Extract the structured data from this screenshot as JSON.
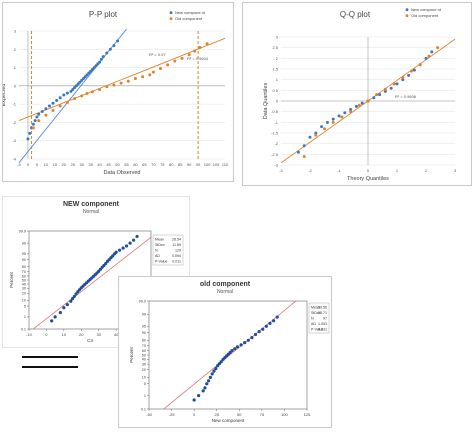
{
  "charts": [
    {
      "id": "pp",
      "type": "scatter",
      "title": "P-P plot",
      "xlabel": "Data Observed",
      "ylabel": "Expected",
      "xlim": [
        -5,
        110
      ],
      "ylim": [
        -4,
        3
      ],
      "xticks": [
        "-5",
        "0",
        "5",
        "10",
        "15",
        "20",
        "25",
        "30",
        "35",
        "40",
        "45",
        "50",
        "55",
        "60",
        "65",
        "70",
        "75",
        "80",
        "85",
        "90",
        "95",
        "100",
        "105",
        "110"
      ],
      "yticks": [
        "3",
        "2",
        "1",
        "0",
        "-1",
        "-2",
        "-3",
        "-4"
      ],
      "legend": {
        "position": "top-right",
        "items": [
          "New compone nt",
          "Old component"
        ]
      },
      "annotations": [
        "R² = 0.97",
        "R² = 0.9604"
      ],
      "vlines_x": [
        2,
        95
      ],
      "series": [
        {
          "name": "New compone nt",
          "color": "#3a78c2",
          "x": [
            0,
            1,
            2,
            3,
            4,
            5,
            6,
            8,
            10,
            12,
            14,
            16,
            18,
            20,
            22,
            24,
            25,
            26,
            27,
            28,
            29,
            30,
            31,
            32,
            33,
            34,
            35,
            36,
            37,
            38,
            39,
            40,
            41,
            42,
            44,
            46,
            48,
            50
          ],
          "y": [
            -2.9,
            -2.6,
            -2.3,
            -2.1,
            -1.9,
            -1.7,
            -1.55,
            -1.4,
            -1.25,
            -1.1,
            -0.95,
            -0.8,
            -0.65,
            -0.5,
            -0.4,
            -0.3,
            -0.2,
            -0.1,
            0.0,
            0.1,
            0.2,
            0.3,
            0.4,
            0.5,
            0.6,
            0.7,
            0.8,
            0.9,
            1.0,
            1.1,
            1.2,
            1.3,
            1.45,
            1.6,
            1.8,
            2.0,
            2.2,
            2.45
          ]
        },
        {
          "name": "Old component",
          "color": "#e0822b",
          "x": [
            3,
            6,
            10,
            14,
            18,
            22,
            26,
            30,
            33,
            36,
            40,
            44,
            48,
            52,
            56,
            60,
            64,
            68,
            70,
            74,
            78,
            82,
            86,
            90,
            93,
            96,
            100
          ],
          "y": [
            -2.3,
            -1.9,
            -1.6,
            -1.35,
            -1.1,
            -0.9,
            -0.7,
            -0.55,
            -0.42,
            -0.32,
            -0.2,
            -0.05,
            0.05,
            0.15,
            0.25,
            0.4,
            0.5,
            0.6,
            0.75,
            0.95,
            1.15,
            1.35,
            1.5,
            1.7,
            1.9,
            2.1,
            2.3
          ]
        }
      ],
      "trendlines": [
        {
          "color": "#4f8fd6",
          "x": [
            -5,
            55
          ],
          "y": [
            -4.2,
            3.1
          ]
        },
        {
          "color": "#e0822b",
          "x": [
            -5,
            110
          ],
          "y": [
            -1.9,
            2.6
          ]
        }
      ]
    },
    {
      "id": "qq",
      "type": "scatter",
      "title": "Q-Q plot",
      "xlabel": "Theory Quantiles",
      "ylabel": "Data Quantiles",
      "xlim": [
        -3,
        3
      ],
      "ylim": [
        -3,
        3
      ],
      "xticks": [
        "-3",
        "-2",
        "-1",
        "0",
        "1",
        "2",
        "3"
      ],
      "yticks": [
        "3",
        "2.5",
        "2",
        "1.5",
        "1",
        "0.5",
        "0",
        "-0.5",
        "-1",
        "-1.5",
        "-2",
        "-2.5",
        "-3"
      ],
      "legend": {
        "position": "top-right",
        "items": [
          "New compone nt",
          "Old component"
        ]
      },
      "annotations": [
        "R² = 0.9606"
      ],
      "series": [
        {
          "name": "New compone nt",
          "color": "#3a78c2",
          "x": [
            -2.4,
            -2.2,
            -2.0,
            -1.8,
            -1.6,
            -1.4,
            -1.2,
            -1.0,
            -0.8,
            -0.6,
            -0.4,
            -0.2,
            0.0,
            0.2,
            0.4,
            0.6,
            0.8,
            1.0,
            1.2,
            1.4,
            1.6,
            1.8,
            2.0,
            2.2
          ],
          "y": [
            -2.4,
            -2.1,
            -1.7,
            -1.5,
            -1.2,
            -1.0,
            -0.85,
            -0.7,
            -0.55,
            -0.4,
            -0.25,
            -0.1,
            0.0,
            0.15,
            0.3,
            0.45,
            0.6,
            0.8,
            1.0,
            1.2,
            1.45,
            1.7,
            2.0,
            2.3
          ]
        },
        {
          "name": "Old component",
          "color": "#e0822b",
          "x": [
            -2.2,
            -1.8,
            -1.5,
            -1.2,
            -0.9,
            -0.6,
            -0.3,
            0.0,
            0.3,
            0.6,
            0.9,
            1.2,
            1.5,
            1.8,
            2.1,
            2.4
          ],
          "y": [
            -2.6,
            -1.6,
            -1.3,
            -1.0,
            -0.75,
            -0.5,
            -0.2,
            0.0,
            0.3,
            0.55,
            0.8,
            1.1,
            1.4,
            1.7,
            2.1,
            2.5
          ]
        }
      ],
      "trendlines": [
        {
          "color": "#e0822b",
          "x": [
            -3,
            3
          ],
          "y": [
            -2.9,
            2.9
          ]
        }
      ]
    },
    {
      "id": "newc",
      "type": "scatter",
      "title": "NEW component",
      "subtitle": "Normal",
      "xlabel": "C3",
      "ylabel": "Percent",
      "xlim": [
        -10,
        60
      ],
      "xticks": [
        "-10",
        "0",
        "10",
        "20",
        "30",
        "40",
        "50",
        "60"
      ],
      "yticks": [
        "99.9",
        "99",
        "95",
        "90",
        "80",
        "70",
        "60",
        "50",
        "40",
        "30",
        "20",
        "10",
        "5",
        "1",
        "0.1"
      ],
      "stats": {
        "labels": [
          "Mean",
          "StDev",
          "N",
          "AD",
          "P-Value"
        ],
        "values": [
          "28.54",
          "11.69",
          "129",
          "0.094",
          "0.011"
        ]
      },
      "series": [
        {
          "name": "",
          "color": "#1f4e9c",
          "x": [
            3,
            5,
            8,
            10,
            12,
            14,
            15,
            16,
            17,
            18,
            19,
            20,
            21,
            22,
            23,
            24,
            25,
            26,
            27,
            28,
            29,
            30,
            31,
            32,
            33,
            34,
            35,
            36,
            37,
            38,
            39,
            40,
            42,
            44,
            46,
            48,
            50,
            52
          ],
          "p": [
            0.5,
            1,
            2,
            4,
            6,
            9,
            12,
            15,
            19,
            23,
            27,
            31,
            35,
            39,
            43,
            47,
            51,
            55,
            59,
            63,
            67,
            71,
            75,
            79,
            82,
            85,
            88,
            90,
            92,
            93.5,
            95,
            96,
            97,
            97.8,
            98.4,
            99,
            99.4,
            99.7
          ]
        }
      ],
      "fit_line": {
        "color": "#e57373",
        "mean": 28.54,
        "sd": 11.69
      }
    },
    {
      "id": "oldc",
      "type": "scatter",
      "title": "old component",
      "subtitle": "Normal",
      "xlabel": "New component",
      "ylabel": "Percent",
      "xlim": [
        -50,
        125
      ],
      "xticks": [
        "-50",
        "-25",
        "0",
        "25",
        "50",
        "75",
        "100",
        "125"
      ],
      "yticks": [
        "99.9",
        "99",
        "95",
        "90",
        "80",
        "70",
        "60",
        "50",
        "40",
        "30",
        "20",
        "10",
        "5",
        "1",
        "0.1"
      ],
      "stats": {
        "labels": [
          "Mean",
          "StDev",
          "N",
          "AD",
          "P-Value"
        ],
        "values": [
          "39.56",
          "23.71",
          "97",
          "1.053",
          "0.011"
        ]
      },
      "series": [
        {
          "name": "",
          "color": "#1f4e9c",
          "x": [
            0,
            5,
            10,
            12,
            14,
            16,
            18,
            20,
            22,
            24,
            26,
            28,
            30,
            32,
            34,
            36,
            38,
            40,
            42,
            45,
            48,
            52,
            56,
            60,
            64,
            68,
            72,
            76,
            80,
            84,
            88,
            92
          ],
          "p": [
            0.5,
            1,
            2,
            3,
            5,
            7,
            10,
            14,
            18,
            22,
            27,
            31,
            35,
            40,
            44,
            48,
            52,
            56,
            60,
            64,
            68,
            72,
            76,
            80,
            84,
            88,
            91,
            93,
            95,
            96.5,
            97.5,
            98.5
          ]
        }
      ],
      "fit_line": {
        "color": "#e57373",
        "mean": 39.56,
        "sd": 23.71
      }
    }
  ]
}
